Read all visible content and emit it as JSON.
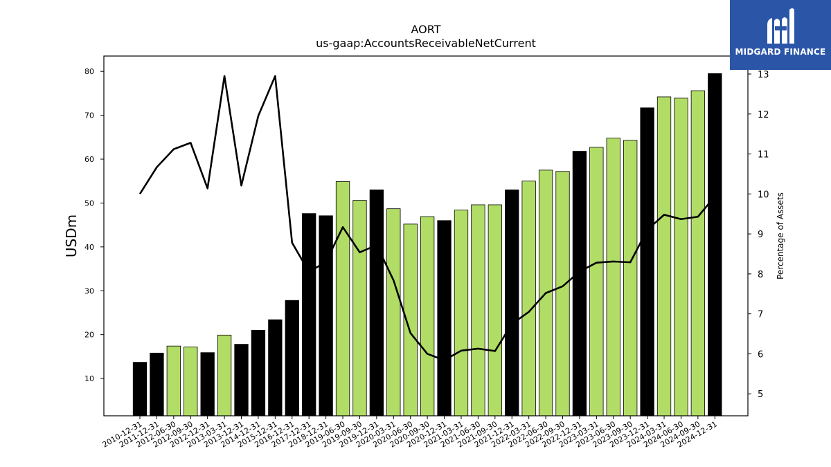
{
  "chart_data": {
    "type": "bar",
    "title": "AORT",
    "subtitle": "us-gaap:AccountsReceivableNetCurrent",
    "ylabel": "USDm",
    "y2label": "Percentage of Assets",
    "ylim": [
      1.5,
      83.5
    ],
    "y2lim": [
      4.45,
      13.45
    ],
    "yticks": [
      10,
      20,
      30,
      40,
      50,
      60,
      70,
      80
    ],
    "y2ticks": [
      5,
      6,
      7,
      8,
      9,
      10,
      11,
      12,
      13
    ],
    "categories": [
      "2010-12-31",
      "2011-12-31",
      "2012-06-30",
      "2012-09-30",
      "2012-12-31",
      "2013-03-31",
      "2013-12-31",
      "2014-12-31",
      "2015-12-31",
      "2016-12-31",
      "2017-12-31",
      "2018-12-31",
      "2019-06-30",
      "2019-09-30",
      "2019-12-31",
      "2020-03-31",
      "2020-06-30",
      "2020-09-30",
      "2020-12-31",
      "2021-03-31",
      "2021-06-30",
      "2021-09-30",
      "2021-12-31",
      "2022-03-31",
      "2022-06-30",
      "2022-09-30",
      "2022-12-31",
      "2023-03-31",
      "2023-06-30",
      "2023-09-30",
      "2023-12-31",
      "2024-03-31",
      "2024-06-30",
      "2024-09-30",
      "2024-12-31"
    ],
    "series": [
      {
        "kind": "bar",
        "values": [
          13.7,
          15.8,
          17.4,
          17.2,
          15.9,
          19.9,
          17.8,
          21.0,
          23.4,
          27.8,
          47.6,
          47.1,
          54.9,
          50.6,
          53.0,
          48.7,
          45.2,
          46.9,
          46.0,
          48.4,
          49.6,
          49.6,
          53.0,
          55.0,
          57.5,
          57.2,
          61.8,
          62.7,
          64.8,
          64.3,
          71.7,
          74.2,
          73.9,
          75.6,
          79.5
        ],
        "annual": [
          true,
          true,
          false,
          false,
          true,
          false,
          true,
          true,
          true,
          true,
          true,
          true,
          false,
          false,
          true,
          false,
          false,
          false,
          true,
          false,
          false,
          false,
          true,
          false,
          false,
          false,
          true,
          false,
          false,
          false,
          true,
          false,
          false,
          false,
          true
        ]
      },
      {
        "kind": "line",
        "axis": "right",
        "values": [
          10.0,
          10.67,
          11.12,
          11.28,
          10.14,
          12.95,
          10.21,
          11.95,
          12.95,
          8.78,
          8.05,
          8.3,
          9.17,
          8.54,
          8.72,
          7.84,
          6.52,
          6.0,
          5.84,
          6.08,
          6.13,
          6.07,
          6.75,
          7.05,
          7.52,
          7.69,
          8.06,
          8.28,
          8.31,
          8.29,
          9.1,
          9.48,
          9.37,
          9.43,
          9.94
        ]
      }
    ],
    "colors": {
      "annual_bar": "#000000",
      "quarter_bar": "#b1dc66",
      "line": "#000000"
    }
  },
  "logo": {
    "text": "MIDGARD FINANCE",
    "bg": "#2b56a8"
  }
}
